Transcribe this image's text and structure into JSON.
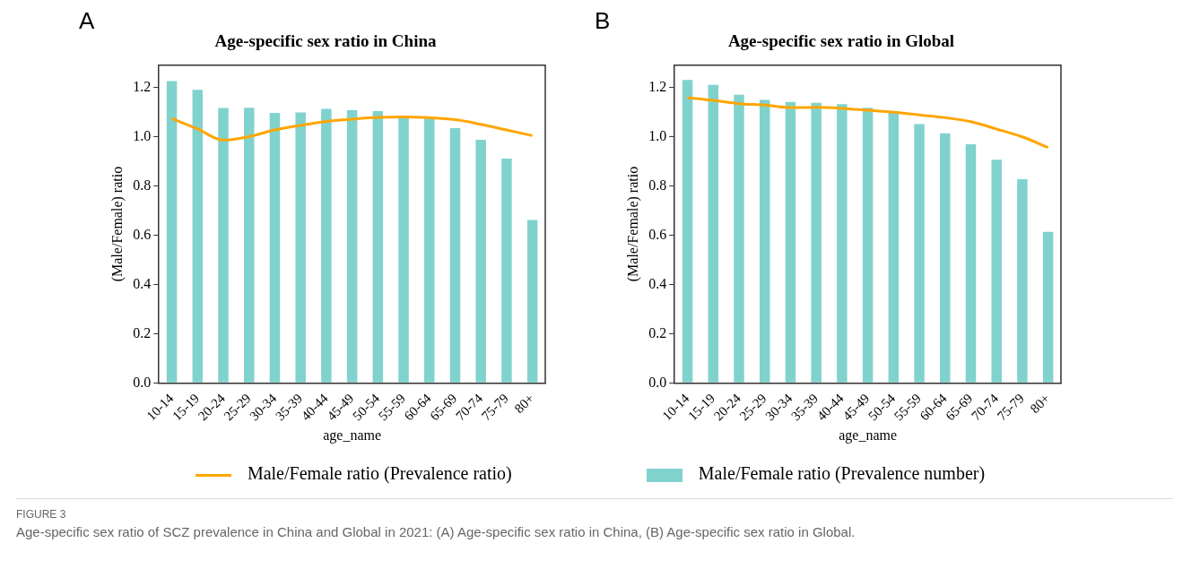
{
  "chart_data": [
    {
      "type": "bar",
      "title": "Age-specific sex ratio in China",
      "xlabel": "age_name",
      "ylabel": "(Male/Female) ratio",
      "categories": [
        "10-14",
        "15-19",
        "20-24",
        "25-29",
        "30-34",
        "35-39",
        "40-44",
        "45-49",
        "50-54",
        "55-59",
        "60-64",
        "65-69",
        "70-74",
        "75-79",
        "80+"
      ],
      "series": [
        {
          "name": "Male/Female ratio (Prevalence ratio)",
          "type": "line",
          "color": "#ffa500",
          "values": [
            1.074,
            1.031,
            0.986,
            1.0,
            1.027,
            1.046,
            1.062,
            1.071,
            1.078,
            1.08,
            1.077,
            1.069,
            1.05,
            1.027,
            1.004
          ]
        },
        {
          "name": "Male/Female ratio (Prevalence number)",
          "type": "bar",
          "color": "#80d2cd",
          "values": [
            1.226,
            1.19,
            1.116,
            1.117,
            1.096,
            1.098,
            1.113,
            1.107,
            1.104,
            1.08,
            1.08,
            1.035,
            0.987,
            0.911,
            0.662
          ]
        }
      ],
      "ylim": [
        0,
        1.29
      ],
      "yticks": [
        {
          "value": 0,
          "label": "0.0"
        },
        {
          "value": 0.2,
          "label": "0.2"
        },
        {
          "value": 0.4,
          "label": "0.4"
        },
        {
          "value": 0.6,
          "label": "0.6"
        },
        {
          "value": 0.8,
          "label": "0.8"
        },
        {
          "value": 1,
          "label": "1.0"
        },
        {
          "value": 1.2,
          "label": "1.2"
        }
      ],
      "legend": "bottom",
      "annotations": [
        "A",
        "FIGURE 3",
        "Age-specific sex ratio of SCZ prevalence in China and Global in 2021: (A) Age-specific sex ratio in China, (B) Age-specific sex ratio in Global."
      ]
    },
    {
      "type": "bar",
      "title": "Age-specific sex ratio in Global",
      "xlabel": "age_name",
      "ylabel": "(Male/Female) ratio",
      "categories": [
        "10-14",
        "15-19",
        "20-24",
        "25-29",
        "30-34",
        "35-39",
        "40-44",
        "45-49",
        "50-54",
        "55-59",
        "60-64",
        "65-69",
        "70-74",
        "75-79",
        "80+"
      ],
      "series": [
        {
          "name": "Male/Female ratio (Prevalence ratio)",
          "type": "line",
          "color": "#ffa500",
          "values": [
            1.158,
            1.147,
            1.134,
            1.128,
            1.118,
            1.119,
            1.115,
            1.107,
            1.099,
            1.088,
            1.077,
            1.061,
            1.031,
            0.999,
            0.956
          ]
        },
        {
          "name": "Male/Female ratio (Prevalence number)",
          "type": "bar",
          "color": "#80d2cd",
          "values": [
            1.23,
            1.21,
            1.17,
            1.149,
            1.141,
            1.137,
            1.132,
            1.117,
            1.098,
            1.051,
            1.014,
            0.969,
            0.906,
            0.827,
            0.613
          ]
        }
      ],
      "ylim": [
        0,
        1.29
      ],
      "yticks": [
        {
          "value": 0,
          "label": "0.0"
        },
        {
          "value": 0.2,
          "label": "0.2"
        },
        {
          "value": 0.4,
          "label": "0.4"
        },
        {
          "value": 0.6,
          "label": "0.6"
        },
        {
          "value": 0.8,
          "label": "0.8"
        },
        {
          "value": 1,
          "label": "1.0"
        },
        {
          "value": 1.2,
          "label": "1.2"
        }
      ],
      "legend": "bottom",
      "annotations": [
        "B"
      ]
    }
  ]
}
